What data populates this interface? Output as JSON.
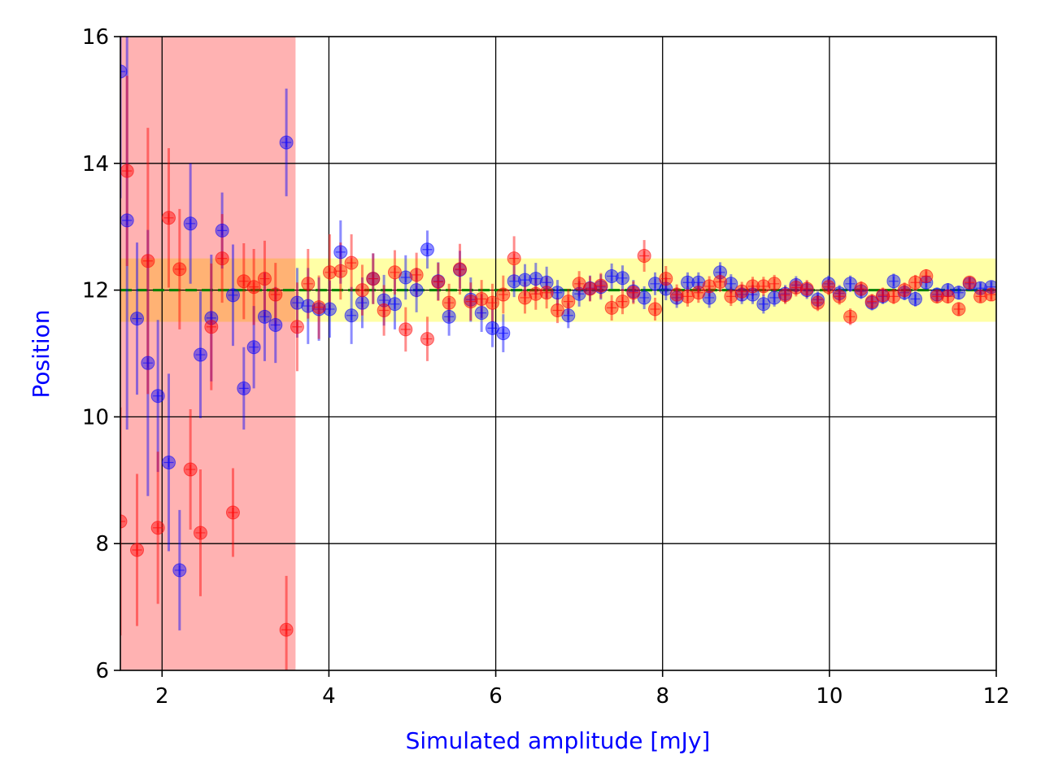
{
  "chart_data": {
    "type": "scatter",
    "title": "",
    "xlabel": "Simulated amplitude [mJy]",
    "ylabel": "Position",
    "xlim": [
      1.5,
      12
    ],
    "ylim": [
      6,
      16
    ],
    "xticks": [
      2,
      4,
      6,
      8,
      10,
      12
    ],
    "yticks": [
      6,
      8,
      10,
      12,
      14,
      16
    ],
    "xtick_labels": [
      "2",
      "4",
      "6",
      "8",
      "10",
      "12"
    ],
    "ytick_labels": [
      "6",
      "8",
      "10",
      "12",
      "14",
      "16"
    ],
    "grid": true,
    "reference_line": {
      "value": 12,
      "color": "#008000",
      "style": "dashed"
    },
    "bands": [
      {
        "axis": "y",
        "from": 11.5,
        "to": 12.5,
        "color": "#ffff00",
        "opacity": 0.35
      },
      {
        "axis": "x",
        "from": 1.5,
        "to": 3.6,
        "color": "#ff0000",
        "opacity": 0.3
      }
    ],
    "colors": {
      "series_blue": "#0000ff",
      "series_red": "#ff0000",
      "axis_label": "#0000ff"
    },
    "series": [
      {
        "name": "blue",
        "color": "#0000ff",
        "x": [
          1.5,
          1.58,
          1.7,
          1.83,
          1.95,
          2.08,
          2.21,
          2.34,
          2.46,
          2.59,
          2.72,
          2.85,
          2.98,
          3.1,
          3.23,
          3.36,
          3.49,
          3.62,
          3.75,
          3.88,
          4.01,
          4.14,
          4.27,
          4.4,
          4.53,
          4.66,
          4.79,
          4.92,
          5.05,
          5.18,
          5.31,
          5.44,
          5.57,
          5.7,
          5.83,
          5.96,
          6.09,
          6.22,
          6.35,
          6.48,
          6.61,
          6.74,
          6.87,
          7.0,
          7.13,
          7.26,
          7.39,
          7.52,
          7.65,
          7.78,
          7.91,
          8.04,
          8.17,
          8.3,
          8.43,
          8.56,
          8.69,
          8.82,
          8.95,
          9.08,
          9.21,
          9.34,
          9.47,
          9.6,
          9.73,
          9.86,
          9.99,
          10.12,
          10.25,
          10.38,
          10.51,
          10.64,
          10.77,
          10.9,
          11.03,
          11.16,
          11.29,
          11.42,
          11.55,
          11.68,
          11.81,
          11.94
        ],
        "y": [
          15.45,
          13.1,
          11.55,
          10.85,
          10.33,
          9.28,
          7.58,
          13.05,
          10.98,
          11.56,
          12.94,
          11.92,
          10.45,
          11.1,
          11.58,
          11.45,
          14.33,
          11.8,
          11.75,
          11.7,
          11.7,
          12.6,
          11.6,
          11.8,
          12.18,
          11.84,
          11.78,
          12.2,
          12.0,
          12.64,
          12.14,
          11.58,
          12.32,
          11.85,
          11.64,
          11.4,
          11.32,
          12.14,
          12.16,
          12.18,
          12.12,
          11.96,
          11.6,
          11.94,
          12.03,
          12.05,
          12.22,
          12.19,
          11.98,
          11.88,
          12.1,
          12.02,
          11.88,
          12.12,
          12.12,
          11.88,
          12.28,
          12.1,
          11.93,
          11.93,
          11.78,
          11.88,
          11.94,
          12.08,
          12.0,
          11.85,
          12.1,
          11.95,
          12.1,
          11.98,
          11.8,
          11.9,
          12.14,
          11.96,
          11.86,
          12.12,
          11.93,
          12.0,
          11.96,
          12.1,
          12.03,
          12.05
        ],
        "err": [
          2.0,
          3.3,
          1.2,
          2.1,
          1.2,
          1.4,
          0.95,
          0.95,
          1.0,
          1.0,
          0.6,
          0.8,
          0.65,
          0.65,
          0.7,
          0.6,
          0.85,
          0.55,
          0.6,
          0.5,
          0.45,
          0.5,
          0.45,
          0.4,
          0.4,
          0.4,
          0.4,
          0.35,
          0.35,
          0.3,
          0.3,
          0.3,
          0.3,
          0.35,
          0.3,
          0.3,
          0.3,
          0.25,
          0.25,
          0.25,
          0.25,
          0.2,
          0.2,
          0.2,
          0.2,
          0.2,
          0.2,
          0.2,
          0.18,
          0.18,
          0.18,
          0.18,
          0.16,
          0.16,
          0.16,
          0.16,
          0.16,
          0.15,
          0.15,
          0.15,
          0.15,
          0.14,
          0.14,
          0.14,
          0.14,
          0.13,
          0.13,
          0.13,
          0.13,
          0.12,
          0.12,
          0.12,
          0.12,
          0.12,
          0.12,
          0.11,
          0.11,
          0.11,
          0.11,
          0.1,
          0.1,
          0.1
        ]
      },
      {
        "name": "red",
        "color": "#ff0000",
        "x": [
          1.5,
          1.58,
          1.7,
          1.83,
          1.95,
          2.08,
          2.21,
          2.34,
          2.46,
          2.59,
          2.72,
          2.85,
          2.98,
          3.1,
          3.23,
          3.36,
          3.49,
          3.62,
          3.75,
          3.88,
          4.01,
          4.14,
          4.27,
          4.4,
          4.53,
          4.66,
          4.79,
          4.92,
          5.05,
          5.18,
          5.31,
          5.44,
          5.57,
          5.7,
          5.83,
          5.96,
          6.09,
          6.22,
          6.35,
          6.48,
          6.61,
          6.74,
          6.87,
          7.0,
          7.13,
          7.26,
          7.39,
          7.52,
          7.65,
          7.78,
          7.91,
          8.04,
          8.17,
          8.3,
          8.43,
          8.56,
          8.69,
          8.82,
          8.95,
          9.08,
          9.21,
          9.34,
          9.47,
          9.6,
          9.73,
          9.86,
          9.99,
          10.12,
          10.25,
          10.38,
          10.51,
          10.64,
          10.77,
          10.9,
          11.03,
          11.16,
          11.29,
          11.42,
          11.55,
          11.68,
          11.81,
          11.94
        ],
        "y": [
          8.35,
          13.88,
          7.9,
          12.46,
          8.25,
          13.14,
          12.33,
          9.17,
          8.17,
          11.42,
          12.5,
          8.49,
          12.14,
          12.05,
          12.18,
          11.93,
          6.64,
          11.42,
          12.1,
          11.73,
          12.28,
          12.3,
          12.43,
          12.0,
          12.18,
          11.68,
          12.28,
          11.38,
          12.24,
          11.23,
          12.13,
          11.8,
          12.33,
          11.82,
          11.86,
          11.8,
          11.93,
          12.5,
          11.88,
          11.94,
          11.96,
          11.68,
          11.82,
          12.1,
          12.02,
          12.07,
          11.72,
          11.82,
          11.96,
          12.54,
          11.7,
          12.18,
          11.93,
          11.9,
          11.96,
          12.06,
          12.13,
          11.9,
          11.98,
          12.06,
          12.06,
          12.1,
          11.92,
          12.04,
          12.02,
          11.8,
          12.05,
          11.9,
          11.58,
          12.02,
          11.82,
          11.92,
          11.9,
          12.0,
          12.12,
          12.22,
          11.9,
          11.9,
          11.7,
          12.12,
          11.9,
          11.93
        ],
        "err": [
          1.8,
          1.5,
          1.2,
          2.1,
          1.2,
          1.1,
          0.95,
          0.95,
          1.0,
          1.0,
          0.7,
          0.7,
          0.6,
          0.6,
          0.6,
          0.5,
          0.85,
          0.7,
          0.55,
          0.5,
          0.6,
          0.45,
          0.45,
          0.4,
          0.4,
          0.4,
          0.35,
          0.35,
          0.35,
          0.35,
          0.3,
          0.3,
          0.4,
          0.3,
          0.3,
          0.3,
          0.3,
          0.35,
          0.25,
          0.25,
          0.25,
          0.2,
          0.2,
          0.2,
          0.2,
          0.2,
          0.2,
          0.2,
          0.18,
          0.25,
          0.18,
          0.2,
          0.16,
          0.16,
          0.16,
          0.16,
          0.16,
          0.15,
          0.15,
          0.15,
          0.15,
          0.14,
          0.14,
          0.14,
          0.14,
          0.13,
          0.13,
          0.13,
          0.13,
          0.12,
          0.12,
          0.12,
          0.12,
          0.12,
          0.12,
          0.11,
          0.11,
          0.11,
          0.11,
          0.1,
          0.1,
          0.1
        ]
      }
    ]
  }
}
